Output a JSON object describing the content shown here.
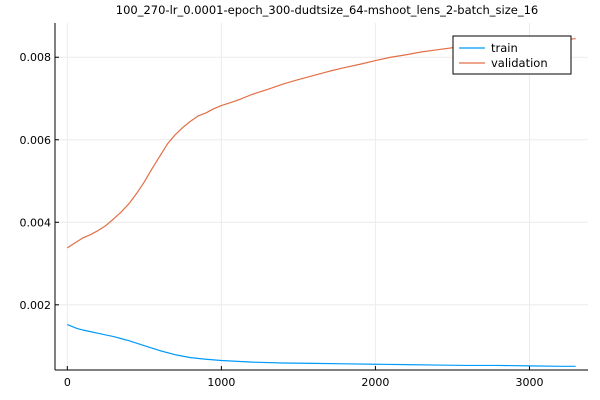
{
  "chart_data": {
    "type": "line",
    "title": "100_270-lr_0.0001-epoch_300-dudtsize_64-mshoot_lens_2-batch_size_16",
    "xlabel": "",
    "ylabel": "",
    "xlim": [
      -80,
      3380
    ],
    "ylim": [
      0.00042,
      0.00883
    ],
    "xticks": [
      0,
      1000,
      2000,
      3000
    ],
    "xtick_labels": [
      "0",
      "1000",
      "2000",
      "3000"
    ],
    "yticks": [
      0.002,
      0.004,
      0.006,
      0.008
    ],
    "ytick_labels": [
      "0.002",
      "0.004",
      "0.006",
      "0.008"
    ],
    "grid": true,
    "legend": "top-right",
    "series": [
      {
        "name": "train",
        "color": "#009af9",
        "x": [
          0,
          20,
          40,
          60,
          80,
          100,
          150,
          200,
          250,
          300,
          350,
          400,
          500,
          600,
          700,
          800,
          900,
          1000,
          1200,
          1400,
          1600,
          1800,
          2000,
          2200,
          2400,
          2600,
          2800,
          3000,
          3200,
          3300
        ],
        "y": [
          0.00152,
          0.00149,
          0.00146,
          0.00143,
          0.00141,
          0.00139,
          0.00135,
          0.00131,
          0.00127,
          0.00123,
          0.00118,
          0.00113,
          0.00101,
          0.00089,
          0.00079,
          0.00072,
          0.00068,
          0.00065,
          0.00061,
          0.00059,
          0.00058,
          0.00057,
          0.00056,
          0.00055,
          0.00054,
          0.00053,
          0.00053,
          0.00052,
          0.00051,
          0.00051
        ]
      },
      {
        "name": "validation",
        "color": "#e26f46",
        "x": [
          0,
          50,
          100,
          150,
          200,
          250,
          300,
          350,
          400,
          450,
          500,
          550,
          600,
          650,
          700,
          750,
          800,
          850,
          900,
          950,
          1000,
          1100,
          1200,
          1300,
          1400,
          1500,
          1600,
          1700,
          1800,
          1900,
          2000,
          2100,
          2200,
          2300,
          2400,
          2500,
          2600,
          2700,
          2800,
          2900,
          3000,
          3100,
          3200,
          3300
        ],
        "y": [
          0.00338,
          0.0035,
          0.00362,
          0.0037,
          0.0038,
          0.00392,
          0.00408,
          0.00425,
          0.00445,
          0.0047,
          0.00498,
          0.0053,
          0.0056,
          0.0059,
          0.00612,
          0.0063,
          0.00645,
          0.00658,
          0.00665,
          0.00675,
          0.00683,
          0.00695,
          0.0071,
          0.00722,
          0.00735,
          0.00746,
          0.00756,
          0.00766,
          0.00775,
          0.00783,
          0.00792,
          0.008,
          0.00806,
          0.00813,
          0.00818,
          0.00823,
          0.00827,
          0.0083,
          0.00832,
          0.00834,
          0.00836,
          0.00838,
          0.00842,
          0.00845
        ]
      }
    ]
  }
}
